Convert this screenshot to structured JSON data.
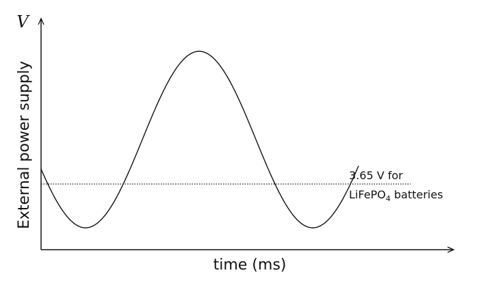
{
  "axes": {
    "y_label": "V",
    "y_title": "External power supply",
    "x_title": "time (ms)"
  },
  "annotation": {
    "line1": "3.65 V for",
    "line2_main": "LiFePO",
    "line2_sub": "4",
    "line2_rest": " batteries"
  }
}
